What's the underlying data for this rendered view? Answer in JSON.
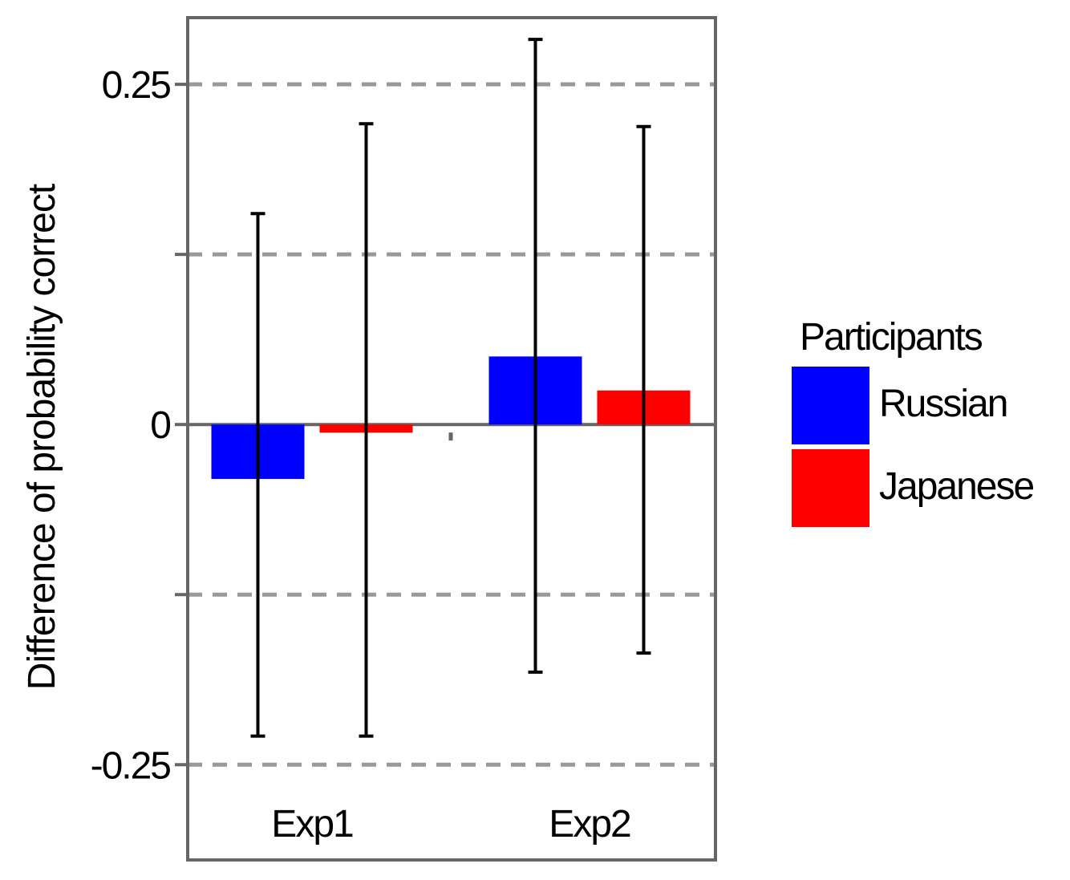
{
  "chart_data": {
    "type": "bar",
    "title": "",
    "xlabel": "",
    "ylabel": "Difference of probability correct",
    "categories": [
      "Exp1",
      "Exp2"
    ],
    "ylim": [
      -0.32,
      0.299
    ],
    "yticks": [
      -0.25,
      -0.125,
      0,
      0.125,
      0.25
    ],
    "ytick_labels": [
      "-0.25",
      "",
      "0",
      "",
      "0.25"
    ],
    "grid": "horizontal dashed",
    "legend": {
      "title": "Participants",
      "position": "right"
    },
    "series": [
      {
        "name": "Russian",
        "color": "#0000ff",
        "values": [
          -0.04,
          0.05
        ],
        "error_low": [
          -0.229,
          -0.182
        ],
        "error_high": [
          0.155,
          0.283
        ]
      },
      {
        "name": "Japanese",
        "color": "#ff0000",
        "values": [
          -0.006,
          0.025
        ],
        "error_low": [
          -0.229,
          -0.168
        ],
        "error_high": [
          0.221,
          0.219
        ]
      }
    ]
  }
}
